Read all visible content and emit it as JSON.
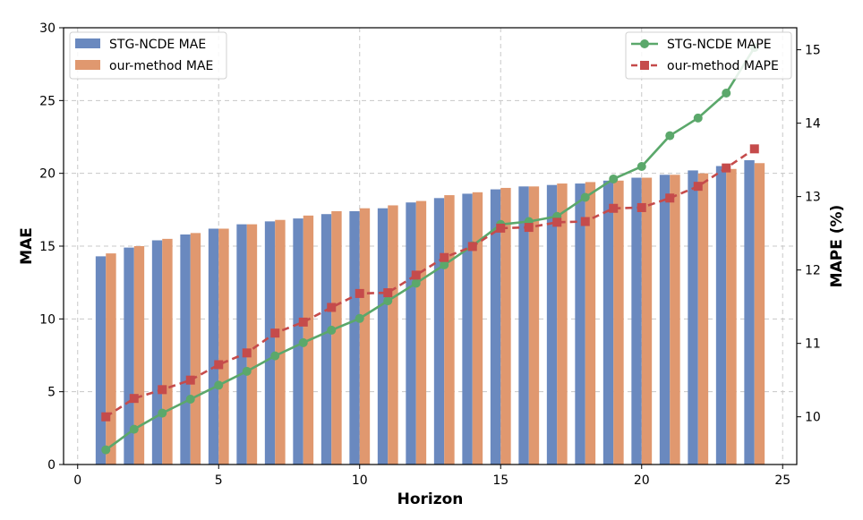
{
  "chart_data": {
    "type": "bar+line",
    "xlabel": "Horizon",
    "ylabel_left": "MAE",
    "ylabel_right": "MAPE (%)",
    "xlim": [
      -0.5,
      25.5
    ],
    "ylim_left": [
      0,
      30
    ],
    "ylim_right": [
      9.35,
      15.3
    ],
    "x_ticks": [
      0,
      5,
      10,
      15,
      20,
      25
    ],
    "y_left_ticks": [
      0,
      5,
      10,
      15,
      20,
      25,
      30
    ],
    "y_right_ticks": [
      10,
      11,
      12,
      13,
      14,
      15
    ],
    "grid": true,
    "x": [
      1,
      2,
      3,
      4,
      5,
      6,
      7,
      8,
      9,
      10,
      11,
      12,
      13,
      14,
      15,
      16,
      17,
      18,
      19,
      20,
      21,
      22,
      23,
      24
    ],
    "bar_series": [
      {
        "name": "STG-NCDE MAE",
        "color": "#6a89bf",
        "values": [
          14.3,
          14.9,
          15.4,
          15.8,
          16.2,
          16.5,
          16.7,
          16.9,
          17.2,
          17.4,
          17.6,
          18.0,
          18.3,
          18.6,
          18.9,
          19.1,
          19.2,
          19.3,
          19.5,
          19.7,
          19.9,
          20.2,
          20.5,
          20.9
        ]
      },
      {
        "name": "our-method MAE",
        "color": "#e0986f",
        "values": [
          14.5,
          15.0,
          15.5,
          15.9,
          16.2,
          16.5,
          16.8,
          17.1,
          17.4,
          17.6,
          17.8,
          18.1,
          18.5,
          18.7,
          19.0,
          19.1,
          19.3,
          19.4,
          19.5,
          19.7,
          19.9,
          20.0,
          20.3,
          20.7
        ]
      }
    ],
    "line_series": [
      {
        "name": "STG-NCDE MAPE",
        "color": "#5ba86b",
        "marker": "circle",
        "dash": "solid",
        "values": [
          9.55,
          9.83,
          10.05,
          10.24,
          10.43,
          10.62,
          10.83,
          11.01,
          11.18,
          11.34,
          11.58,
          11.82,
          12.07,
          12.33,
          12.62,
          12.66,
          12.73,
          12.99,
          13.24,
          13.41,
          13.83,
          14.07,
          14.41,
          15.03
        ]
      },
      {
        "name": "our-method MAPE",
        "color": "#c54b4b",
        "marker": "square",
        "dash": "dashed",
        "values": [
          10.0,
          10.25,
          10.37,
          10.5,
          10.71,
          10.87,
          11.14,
          11.29,
          11.49,
          11.68,
          11.69,
          11.93,
          12.17,
          12.32,
          12.57,
          12.58,
          12.65,
          12.66,
          12.84,
          12.85,
          12.98,
          13.14,
          13.39,
          13.65
        ]
      }
    ],
    "legend_left_position": "top-left",
    "legend_right_position": "top-right"
  }
}
